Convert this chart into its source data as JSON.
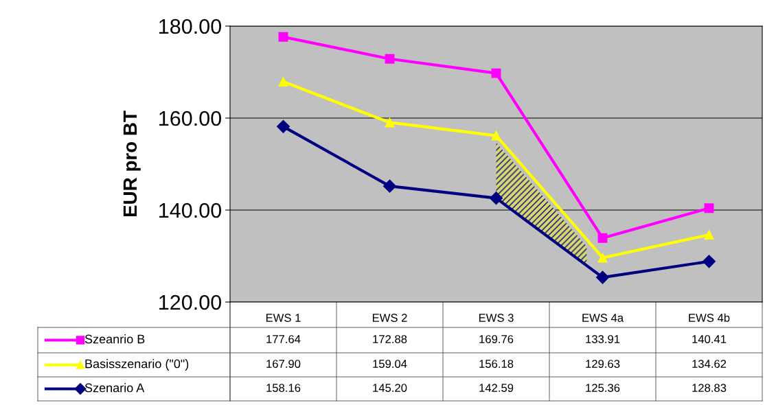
{
  "chart_data": {
    "type": "line",
    "ylabel": "EUR pro BT",
    "categories": [
      "EWS 1",
      "EWS 2",
      "EWS 3",
      "EWS 4a",
      "EWS 4b"
    ],
    "series": [
      {
        "name": "Szeanrio B",
        "color": "#ff00ff",
        "marker": "square",
        "values": [
          177.64,
          172.88,
          169.76,
          133.91,
          140.41
        ],
        "value_labels": [
          "177.64",
          "172.88",
          "169.76",
          "133.91",
          "140.41"
        ]
      },
      {
        "name": "Basisszenario (\"0\")",
        "color": "#ffff00",
        "marker": "triangle",
        "values": [
          167.9,
          159.04,
          156.18,
          129.63,
          134.62
        ],
        "value_labels": [
          "167.90",
          "159.04",
          "156.18",
          "129.63",
          "134.62"
        ]
      },
      {
        "name": "Szenario A",
        "color": "#000080",
        "marker": "diamond",
        "values": [
          158.16,
          145.2,
          142.59,
          125.36,
          128.83
        ],
        "value_labels": [
          "158.16",
          "145.20",
          "142.59",
          "125.36",
          "128.83"
        ]
      }
    ],
    "ylim": [
      120,
      180
    ],
    "yticks": [
      {
        "value": 120,
        "label": "120.00"
      },
      {
        "value": 140,
        "label": "140.00"
      },
      {
        "value": 160,
        "label": "160.00"
      },
      {
        "value": 180,
        "label": "180.00"
      }
    ],
    "grid": "y",
    "legend": "bottom",
    "line_style": "solid"
  }
}
